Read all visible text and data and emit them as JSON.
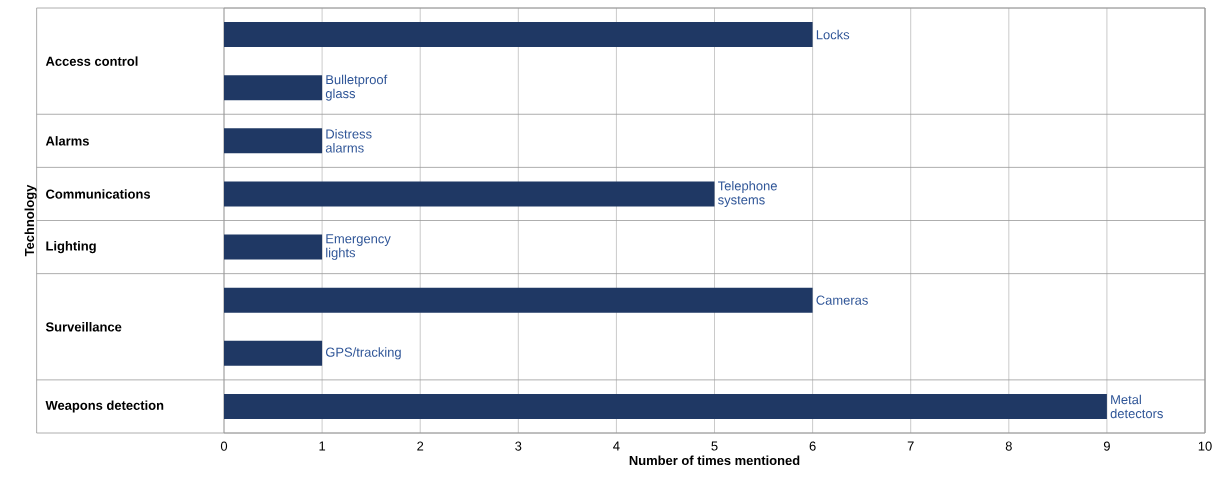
{
  "chart_data": {
    "type": "bar",
    "orientation": "horizontal",
    "xlabel": "Number of times mentioned",
    "ylabel": "Technology",
    "categories": [
      "Access control",
      null,
      "Alarms",
      "Communications",
      "Lighting",
      "Surveillance",
      null,
      "Weapons detection"
    ],
    "values": [
      6,
      1,
      1,
      5,
      1,
      6,
      1,
      9
    ],
    "value_labels": [
      "Locks",
      "Bulletproof glass",
      "Distress alarms",
      "Telephone systems",
      "Emergency lights",
      "Cameras",
      "GPS/tracking",
      "Metal detectors"
    ],
    "color": "#1f3864",
    "xlim": [
      0,
      10
    ],
    "xticks": [
      0,
      1,
      2,
      3,
      4,
      5,
      6,
      7,
      8,
      9,
      10
    ],
    "grid": "x"
  }
}
